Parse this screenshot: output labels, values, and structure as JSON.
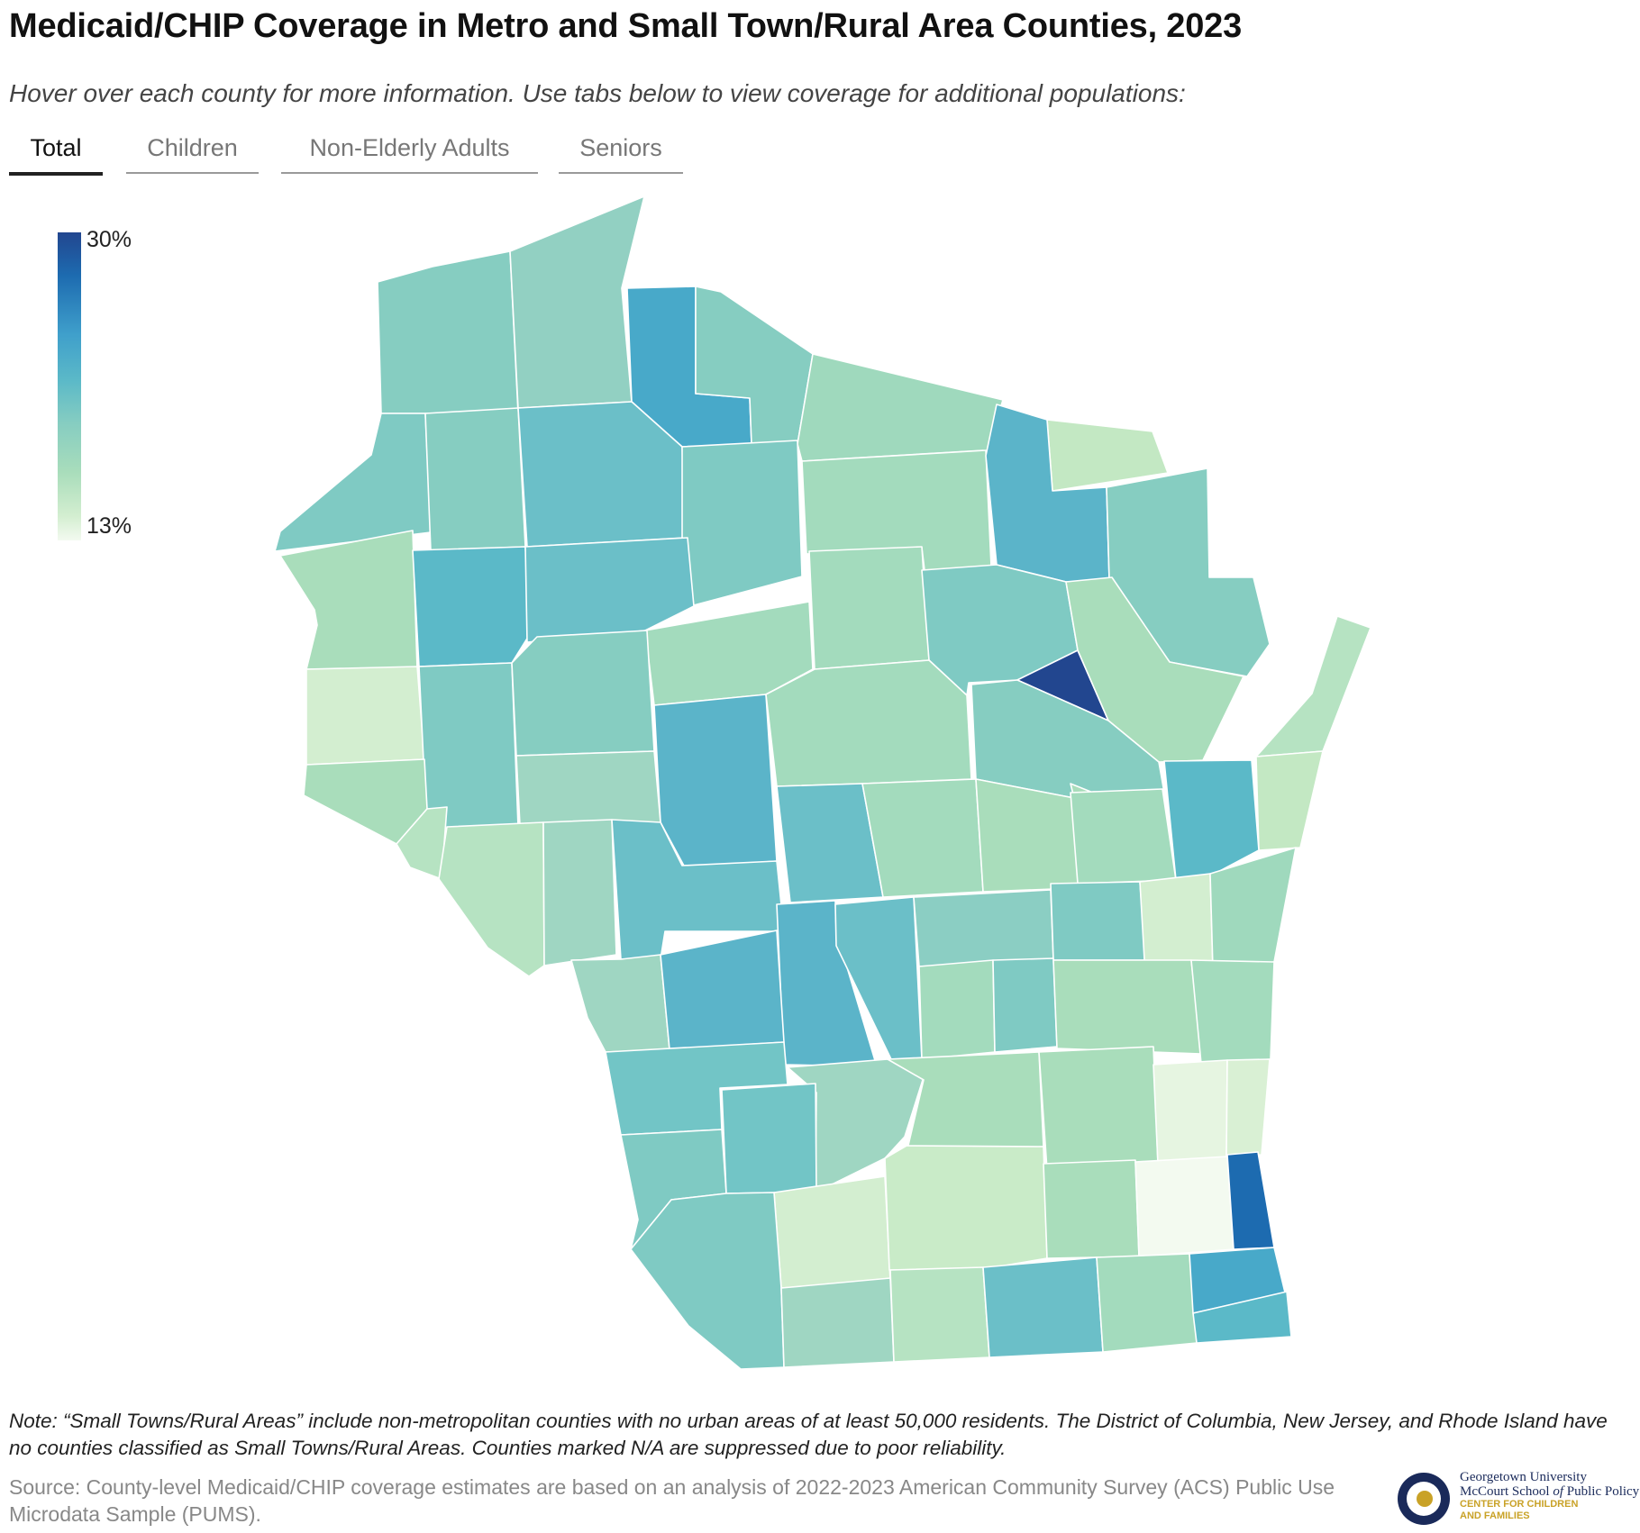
{
  "title": "Medicaid/CHIP Coverage in Metro and Small Town/Rural Area Counties, 2023",
  "subtitle": "Hover over each county for more information. Use tabs below to view coverage for additional populations:",
  "tabs": [
    {
      "label": "Total",
      "active": true
    },
    {
      "label": "Children",
      "active": false
    },
    {
      "label": "Non-Elderly Adults",
      "active": false
    },
    {
      "label": "Seniors",
      "active": false
    }
  ],
  "legend": {
    "max_label": "30%",
    "min_label": "13%",
    "max_color": "#22468f",
    "min_color": "#f3faf0"
  },
  "map": {
    "state": "Wisconsin",
    "shading": "Medicaid/CHIP coverage rate by county (13% to 30%)"
  },
  "note": "Note: “Small Towns/Rural Areas” include non-metropolitan counties with no urban areas of at least 50,000 residents. The District of Columbia, New Jersey, and Rhode Island have no counties classified as Small Towns/Rural Areas. Counties marked N/A are suppressed due to poor reliability.",
  "source": "Source: County-level Medicaid/CHIP coverage estimates are based on an analysis of 2022-2023 American Community Survey (ACS) Public Use Microdata Sample (PUMS).",
  "logo": {
    "line1": "Georgetown University",
    "line2_pre": "McCourt School ",
    "line2_italic": "of",
    "line2_post": " Public Policy",
    "line3": "CENTER FOR CHILDREN",
    "line4": "AND FAMILIES",
    "navy": "#1a2a5a",
    "gold": "#c9a227"
  }
}
